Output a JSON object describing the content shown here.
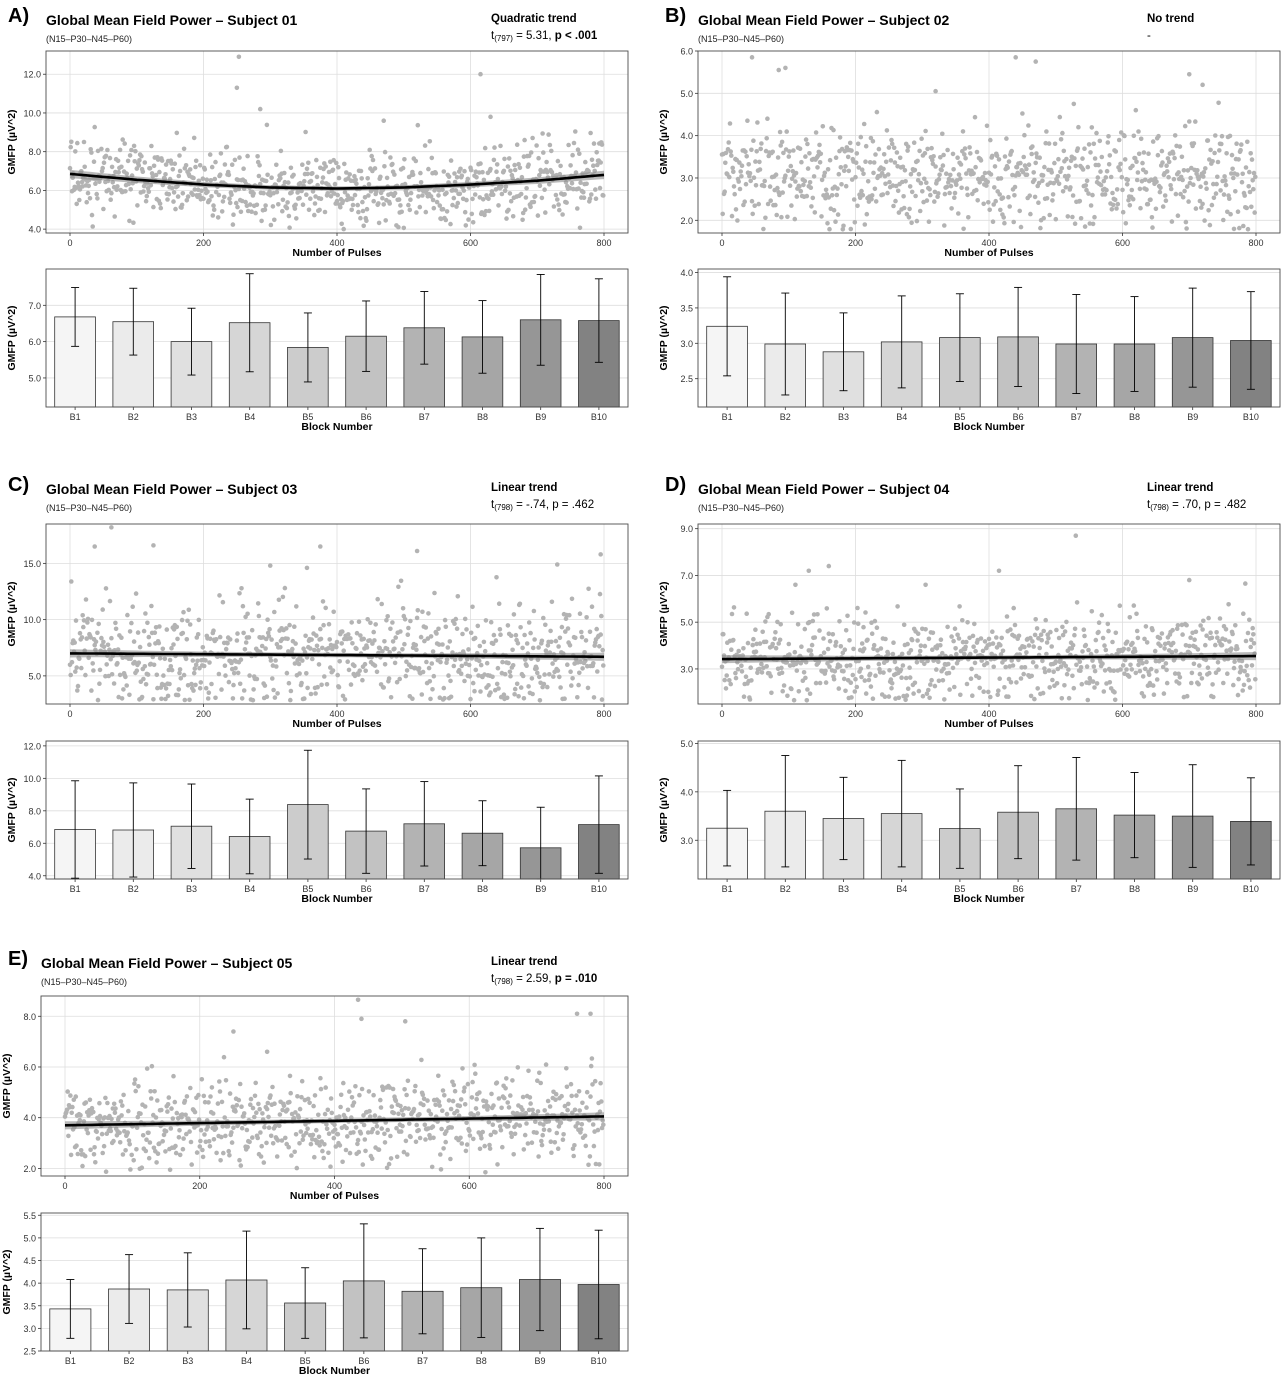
{
  "colors": {
    "point": "#b3b3b3",
    "trend_line": "#000000",
    "trend_band": "#8c8c8c",
    "grid": "#dedede",
    "panel_border": "#4d4d4d",
    "bar_fills": [
      "#f5f5f5",
      "#ebebeb",
      "#e0e0e0",
      "#d6d6d6",
      "#cccccc",
      "#c2c2c2",
      "#b3b3b3",
      "#a6a6a6",
      "#969696",
      "#828282"
    ]
  },
  "panels": [
    {
      "letter": "A)",
      "title": "Global Mean Field Power – Subject 01",
      "subtitle": "(N15–P30–N45–P60)",
      "trend_label": "Quadratic trend",
      "stat_prefix": "t",
      "stat_df": "(797)",
      "stat_value": " = 5.31, ",
      "stat_p": "p < .001",
      "stat_p_bold": true
    },
    {
      "letter": "B)",
      "title": "Global Mean Field Power – Subject 02",
      "subtitle": "(N15–P30–N45–P60)",
      "trend_label": "No trend",
      "stat_prefix": "-",
      "stat_df": "",
      "stat_value": "",
      "stat_p": "",
      "stat_p_bold": false
    },
    {
      "letter": "C)",
      "title": "Global Mean Field Power – Subject 03",
      "subtitle": "(N15–P30–N45–P60)",
      "trend_label": "Linear trend",
      "stat_prefix": "t",
      "stat_df": "(798)",
      "stat_value": " = -.74, ",
      "stat_p": "p = .462",
      "stat_p_bold": false
    },
    {
      "letter": "D)",
      "title": "Global Mean Field Power – Subject 04",
      "subtitle": "(N15–P30–N45–P60)",
      "trend_label": "Linear trend",
      "stat_prefix": "t",
      "stat_df": "(798)",
      "stat_value": " = .70, ",
      "stat_p": "p = .482",
      "stat_p_bold": false
    },
    {
      "letter": "E)",
      "title": "Global Mean Field Power – Subject 05",
      "subtitle": "(N15–P30–N45–P60)",
      "trend_label": "Linear trend",
      "stat_prefix": "t",
      "stat_df": "(798)",
      "stat_value": " = 2.59, ",
      "stat_p": "p = .010",
      "stat_p_bold": true
    }
  ],
  "chart_data": [
    {
      "panel": "A)",
      "type": "scatter",
      "xlabel": "Number of Pulses",
      "ylabel": "GMFP (µV^2)",
      "xlim": [
        0,
        800
      ],
      "ylim": [
        3.8,
        13.2
      ],
      "xticks": [
        0,
        200,
        400,
        600,
        800
      ],
      "yticks": [
        4.0,
        6.0,
        8.0,
        10.0,
        12.0
      ],
      "n_points": 800,
      "trend": {
        "kind": "quadratic",
        "x": [
          0,
          100,
          200,
          300,
          400,
          500,
          600,
          700,
          800
        ],
        "y": [
          6.85,
          6.55,
          6.3,
          6.15,
          6.1,
          6.15,
          6.3,
          6.5,
          6.8
        ]
      },
      "outliers": [
        [
          253,
          12.9
        ],
        [
          250,
          11.3
        ],
        [
          615,
          12.0
        ],
        [
          285,
          10.2
        ],
        [
          470,
          9.6
        ],
        [
          630,
          9.8
        ]
      ],
      "noise": {
        "baseline": 6.4,
        "sd": 1.1
      },
      "grid": true
    },
    {
      "panel": "A)",
      "type": "bar",
      "xlabel": "Block Number",
      "ylabel": "GMFP (µV^2)",
      "categories": [
        "B1",
        "B2",
        "B3",
        "B4",
        "B5",
        "B6",
        "B7",
        "B8",
        "B9",
        "B10"
      ],
      "values": [
        6.68,
        6.55,
        6.0,
        6.52,
        5.84,
        6.15,
        6.38,
        6.13,
        6.6,
        6.58
      ],
      "error": [
        0.81,
        0.92,
        0.92,
        1.35,
        0.95,
        0.97,
        1.0,
        1.0,
        1.25,
        1.15
      ],
      "ylim": [
        4.2,
        8.0
      ],
      "yticks": [
        5.0,
        6.0,
        7.0
      ],
      "grid": true
    },
    {
      "panel": "B)",
      "type": "scatter",
      "xlabel": "Number of Pulses",
      "ylabel": "GMFP (µV^2)",
      "xlim": [
        0,
        800
      ],
      "ylim": [
        1.7,
        6.0
      ],
      "xticks": [
        0,
        200,
        400,
        600,
        800
      ],
      "yticks": [
        2.0,
        3.0,
        4.0,
        5.0,
        6.0
      ],
      "n_points": 800,
      "trend": null,
      "outliers": [
        [
          45,
          5.85
        ],
        [
          95,
          5.6
        ],
        [
          85,
          5.55
        ],
        [
          440,
          5.85
        ],
        [
          470,
          5.75
        ],
        [
          700,
          5.45
        ],
        [
          320,
          5.05
        ],
        [
          720,
          5.2
        ]
      ],
      "noise": {
        "baseline": 3.05,
        "sd": 0.7
      },
      "grid": true
    },
    {
      "panel": "B)",
      "type": "bar",
      "xlabel": "Block Number",
      "ylabel": "GMFP (µV^2)",
      "categories": [
        "B1",
        "B2",
        "B3",
        "B4",
        "B5",
        "B6",
        "B7",
        "B8",
        "B9",
        "B10"
      ],
      "values": [
        3.24,
        2.99,
        2.88,
        3.02,
        3.08,
        3.09,
        2.99,
        2.99,
        3.08,
        3.04
      ],
      "error": [
        0.7,
        0.72,
        0.55,
        0.65,
        0.62,
        0.7,
        0.7,
        0.67,
        0.7,
        0.69
      ],
      "ylim": [
        2.1,
        4.05
      ],
      "yticks": [
        2.5,
        3.0,
        3.5,
        4.0
      ],
      "grid": true
    },
    {
      "panel": "C)",
      "type": "scatter",
      "xlabel": "Number of Pulses",
      "ylabel": "GMFP (µV^2)",
      "xlim": [
        0,
        800
      ],
      "ylim": [
        2.5,
        18.5
      ],
      "xticks": [
        0,
        200,
        400,
        600,
        800
      ],
      "yticks": [
        5.0,
        10.0,
        15.0
      ],
      "n_points": 800,
      "trend": {
        "kind": "linear",
        "x": [
          0,
          800
        ],
        "y": [
          7.0,
          6.7
        ]
      },
      "outliers": [
        [
          62,
          18.2
        ],
        [
          37,
          16.5
        ],
        [
          125,
          16.6
        ],
        [
          300,
          14.8
        ],
        [
          375,
          16.5
        ],
        [
          520,
          16.1
        ],
        [
          795,
          15.8
        ],
        [
          730,
          14.9
        ],
        [
          355,
          14.6
        ]
      ],
      "noise": {
        "baseline": 6.9,
        "sd": 2.7
      },
      "grid": true
    },
    {
      "panel": "C)",
      "type": "bar",
      "xlabel": "Block Number",
      "ylabel": "GMFP (µV^2)",
      "categories": [
        "B1",
        "B2",
        "B3",
        "B4",
        "B5",
        "B6",
        "B7",
        "B8",
        "B9",
        "B10"
      ],
      "values": [
        6.85,
        6.82,
        7.05,
        6.42,
        8.38,
        6.75,
        7.2,
        6.62,
        5.72,
        7.15
      ],
      "error": [
        3.0,
        2.9,
        2.6,
        2.3,
        3.35,
        2.6,
        2.6,
        2.0,
        2.5,
        3.0
      ],
      "ylim": [
        3.8,
        12.3
      ],
      "yticks": [
        4.0,
        6.0,
        8.0,
        10.0,
        12.0
      ],
      "grid": true
    },
    {
      "panel": "D)",
      "type": "scatter",
      "xlabel": "Number of Pulses",
      "ylabel": "GMFP (µV^2)",
      "xlim": [
        0,
        800
      ],
      "ylim": [
        1.5,
        9.2
      ],
      "xticks": [
        0,
        200,
        400,
        600,
        800
      ],
      "yticks": [
        3.0,
        5.0,
        7.0,
        9.0
      ],
      "n_points": 800,
      "trend": {
        "kind": "linear",
        "x": [
          0,
          800
        ],
        "y": [
          3.42,
          3.55
        ]
      },
      "outliers": [
        [
          530,
          8.7
        ],
        [
          160,
          7.4
        ],
        [
          130,
          7.2
        ],
        [
          415,
          7.2
        ],
        [
          700,
          6.8
        ],
        [
          110,
          6.6
        ],
        [
          305,
          6.6
        ]
      ],
      "noise": {
        "baseline": 3.5,
        "sd": 1.1
      },
      "grid": true
    },
    {
      "panel": "D)",
      "type": "bar",
      "xlabel": "Block Number",
      "ylabel": "GMFP (µV^2)",
      "categories": [
        "B1",
        "B2",
        "B3",
        "B4",
        "B5",
        "B6",
        "B7",
        "B8",
        "B9",
        "B10"
      ],
      "values": [
        3.25,
        3.6,
        3.45,
        3.55,
        3.24,
        3.58,
        3.65,
        3.52,
        3.5,
        3.39
      ],
      "error": [
        0.78,
        1.15,
        0.85,
        1.1,
        0.82,
        0.96,
        1.06,
        0.88,
        1.06,
        0.9
      ],
      "ylim": [
        2.2,
        5.05
      ],
      "yticks": [
        3.0,
        4.0,
        5.0
      ],
      "grid": true
    },
    {
      "panel": "E)",
      "type": "scatter",
      "xlabel": "Number of Pulses",
      "ylabel": "GMFP (µV^2)",
      "xlim": [
        0,
        800
      ],
      "ylim": [
        1.7,
        8.8
      ],
      "xticks": [
        0,
        200,
        400,
        600,
        800
      ],
      "yticks": [
        2.0,
        4.0,
        6.0,
        8.0
      ],
      "n_points": 800,
      "trend": {
        "kind": "linear",
        "x": [
          0,
          800
        ],
        "y": [
          3.7,
          4.05
        ]
      },
      "outliers": [
        [
          435,
          8.65
        ],
        [
          440,
          7.9
        ],
        [
          760,
          8.1
        ],
        [
          780,
          8.1
        ],
        [
          505,
          7.8
        ],
        [
          250,
          7.4
        ],
        [
          300,
          6.6
        ]
      ],
      "noise": {
        "baseline": 3.85,
        "sd": 0.95
      },
      "grid": true
    },
    {
      "panel": "E)",
      "type": "bar",
      "xlabel": "Block Number",
      "ylabel": "GMFP (µV^2)",
      "categories": [
        "B1",
        "B2",
        "B3",
        "B4",
        "B5",
        "B6",
        "B7",
        "B8",
        "B9",
        "B10"
      ],
      "values": [
        3.43,
        3.87,
        3.85,
        4.07,
        3.56,
        4.05,
        3.82,
        3.9,
        4.08,
        3.97
      ],
      "error": [
        0.65,
        0.76,
        0.82,
        1.08,
        0.78,
        1.26,
        0.94,
        1.1,
        1.13,
        1.2
      ],
      "ylim": [
        2.5,
        5.55
      ],
      "yticks": [
        2.5,
        3.0,
        3.5,
        4.0,
        4.5,
        5.0,
        5.5
      ],
      "grid": true
    }
  ]
}
